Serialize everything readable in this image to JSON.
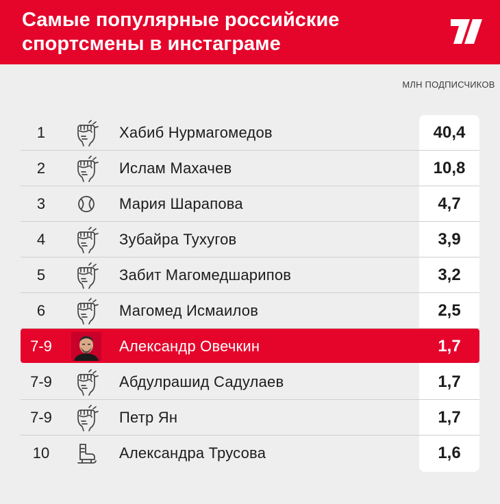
{
  "header": {
    "title": "Самые популярные российские спортсмены в инстаграме",
    "logo_icon": "brand-slash-logo-icon",
    "background_color": "#e5052b"
  },
  "unit_label": "МЛН ПОДПИСЧИКОВ",
  "chart_data": {
    "type": "table",
    "title": "Самые популярные российские спортсмены в инстаграме",
    "value_label": "МЛН ПОДПИСЧИКОВ",
    "highlight_color": "#e5052b",
    "rows": [
      {
        "rank": "1",
        "name": "Хабиб Нурмагомедов",
        "sport_icon": "fist-icon",
        "value": "40,4",
        "highlight": false
      },
      {
        "rank": "2",
        "name": "Ислам Махачев",
        "sport_icon": "fist-icon",
        "value": "10,8",
        "highlight": false
      },
      {
        "rank": "3",
        "name": "Мария Шарапова",
        "sport_icon": "tennis-ball-icon",
        "value": "4,7",
        "highlight": false
      },
      {
        "rank": "4",
        "name": "Зубайра Тухугов",
        "sport_icon": "fist-icon",
        "value": "3,9",
        "highlight": false
      },
      {
        "rank": "5",
        "name": "Забит Магомедшарипов",
        "sport_icon": "fist-icon",
        "value": "3,2",
        "highlight": false
      },
      {
        "rank": "6",
        "name": "Магомед Исмаилов",
        "sport_icon": "fist-icon",
        "value": "2,5",
        "highlight": false
      },
      {
        "rank": "7-9",
        "name": "Александр Овечкин",
        "sport_icon": "portrait-photo-icon",
        "value": "1,7",
        "highlight": true
      },
      {
        "rank": "7-9",
        "name": "Абдулрашид Садулаев",
        "sport_icon": "fist-icon",
        "value": "1,7",
        "highlight": false
      },
      {
        "rank": "7-9",
        "name": "Петр Ян",
        "sport_icon": "fist-icon",
        "value": "1,7",
        "highlight": false
      },
      {
        "rank": "10",
        "name": "Александра Трусова",
        "sport_icon": "skate-icon",
        "value": "1,6",
        "highlight": false
      }
    ]
  }
}
